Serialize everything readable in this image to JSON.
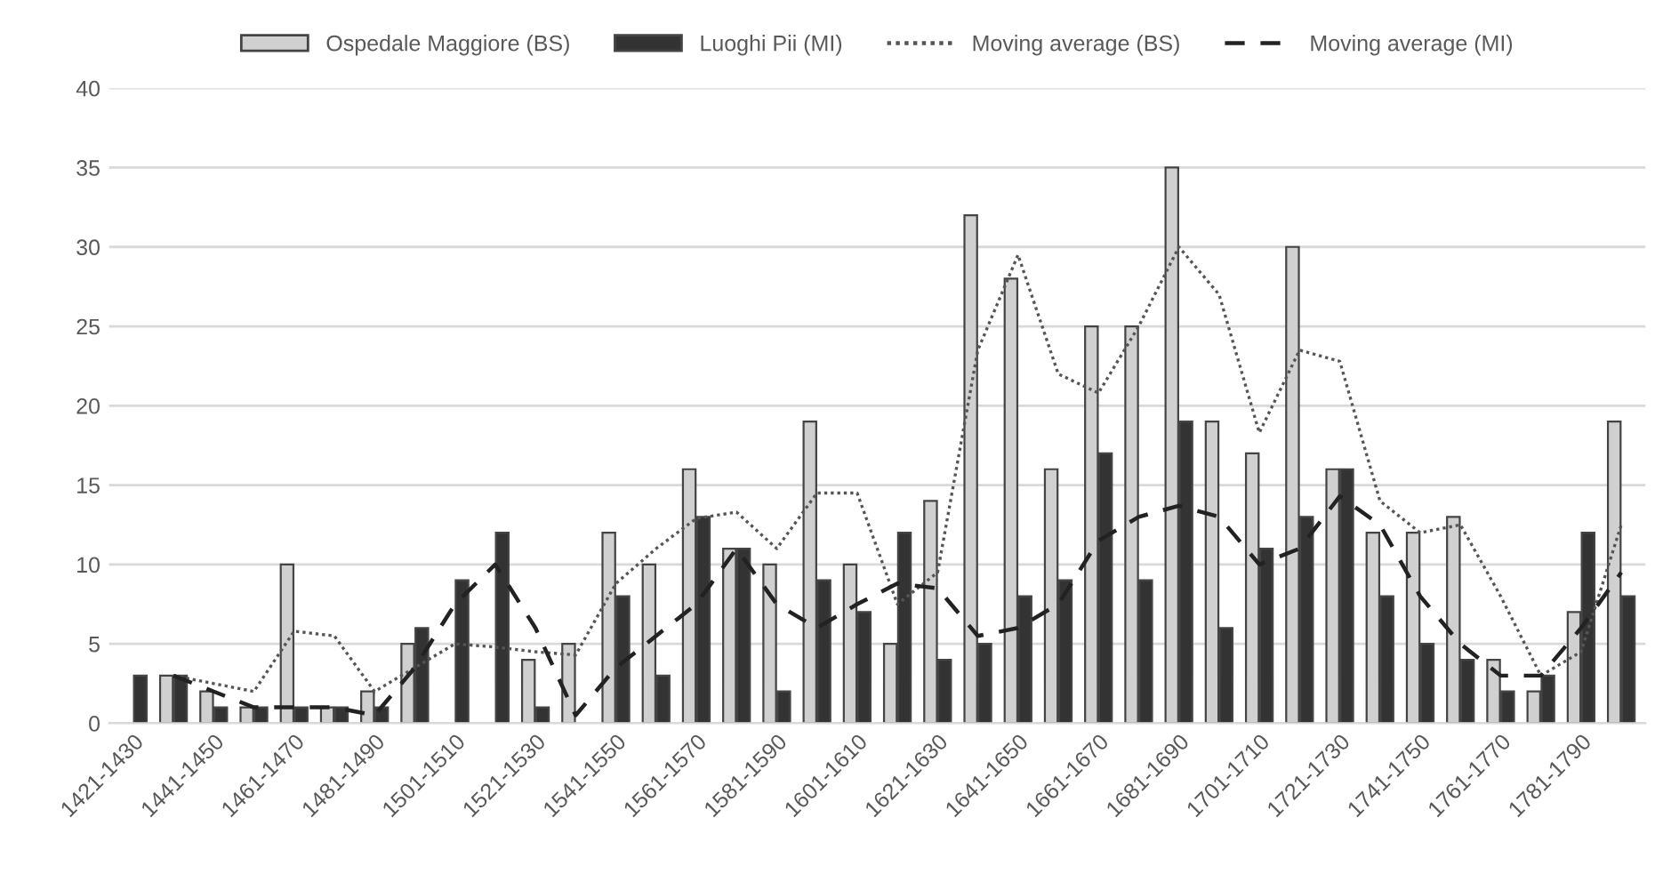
{
  "chart_data": {
    "type": "bar",
    "categories": [
      "1421-1430",
      null,
      "1441-1450",
      null,
      "1461-1470",
      null,
      "1481-1490",
      null,
      "1501-1510",
      null,
      "1521-1530",
      null,
      "1541-1550",
      null,
      "1561-1570",
      null,
      "1581-1590",
      null,
      "1601-1610",
      null,
      "1621-1630",
      null,
      "1641-1650",
      null,
      "1661-1670",
      null,
      "1681-1690",
      null,
      "1701-1710",
      null,
      "1721-1730",
      null,
      "1741-1750",
      null,
      "1761-1770",
      null,
      "1781-1790",
      null
    ],
    "series": [
      {
        "name": "Ospedale Maggiore (BS)",
        "color": "#d0d0d0",
        "values": [
          0,
          3,
          2,
          1,
          10,
          1,
          2,
          5,
          0,
          0,
          4,
          5,
          12,
          10,
          16,
          11,
          10,
          19,
          10,
          5,
          14,
          32,
          28,
          16,
          25,
          25,
          35,
          19,
          17,
          30,
          16,
          12,
          12,
          13,
          4,
          2,
          7,
          19
        ]
      },
      {
        "name": "Luoghi Pii (MI)",
        "color": "#333333",
        "values": [
          3,
          3,
          1,
          1,
          1,
          1,
          1,
          6,
          9,
          12,
          1,
          0,
          8,
          3,
          13,
          11,
          2,
          9,
          7,
          12,
          4,
          5,
          8,
          9,
          17,
          9,
          19,
          6,
          11,
          13,
          16,
          8,
          5,
          4,
          2,
          3,
          12,
          8
        ]
      },
      {
        "name": "Moving average (BS)",
        "type": "line",
        "line_style": "dotted",
        "color": "#555555",
        "values": [
          null,
          3,
          2.5,
          2,
          5.8,
          5.5,
          2,
          3.5,
          5,
          4.8,
          4.5,
          4.3,
          8.8,
          11,
          12.9,
          13.3,
          11,
          14.5,
          14.5,
          7.5,
          9.5,
          23.5,
          29.5,
          22,
          20.8,
          25,
          30,
          27,
          18.3,
          23.5,
          22.8,
          14,
          12,
          12.5,
          8,
          3,
          4.5,
          12.5
        ]
      },
      {
        "name": "Moving average (MI)",
        "type": "line",
        "line_style": "dashed",
        "color": "#222222",
        "values": [
          null,
          3,
          2,
          1,
          1,
          1,
          0.5,
          3.5,
          7.5,
          10,
          6,
          0.5,
          3.5,
          5.5,
          7.5,
          11,
          7.5,
          6,
          7.5,
          8.8,
          8.5,
          5.5,
          6,
          7.5,
          11.5,
          13,
          13.7,
          13,
          10,
          11,
          14.3,
          12.5,
          8,
          5,
          3,
          3,
          6,
          9.5
        ]
      }
    ],
    "ylim": [
      0,
      40
    ],
    "yticks": [
      0,
      5,
      10,
      15,
      20,
      25,
      30,
      35,
      40
    ],
    "grid": "y",
    "legend": "top"
  }
}
